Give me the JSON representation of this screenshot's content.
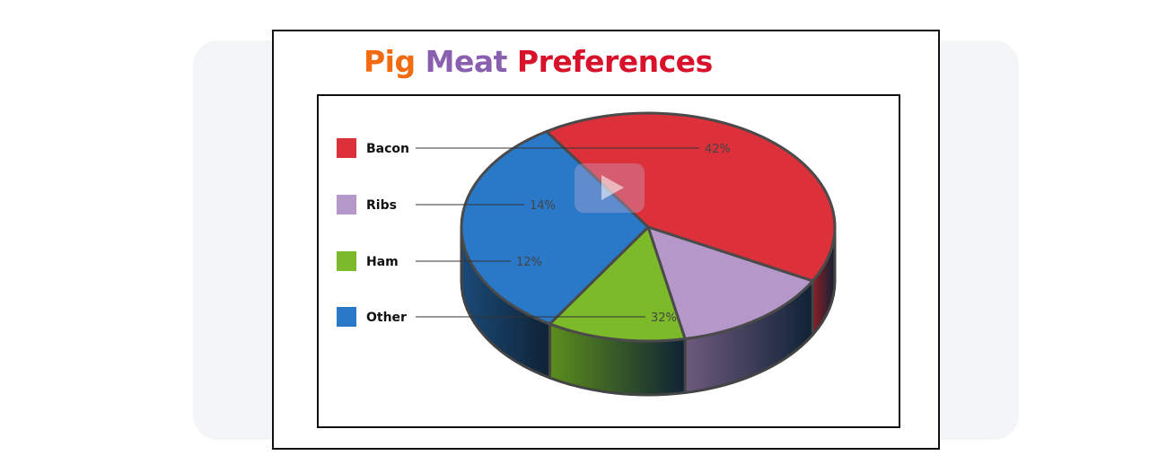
{
  "title": {
    "word1": "Pig",
    "word2": "Meat",
    "word3": "Preferences",
    "color1": "#f36b10",
    "color2": "#8b5fb0",
    "color3": "#d8122b"
  },
  "chart_data": {
    "type": "pie",
    "categories": [
      "Bacon",
      "Ribs",
      "Ham",
      "Other"
    ],
    "values": [
      42,
      14,
      12,
      32
    ],
    "labels": [
      "42%",
      "14%",
      "12%",
      "32%"
    ],
    "colors": [
      "#dc303a",
      "#b597c9",
      "#7dba2a",
      "#2a78c8"
    ],
    "side_colors": [
      "#8e1d24",
      "#6e5a7d",
      "#5d8e1c",
      "#1a4a78"
    ],
    "legend_position": "left",
    "three_d": true
  }
}
